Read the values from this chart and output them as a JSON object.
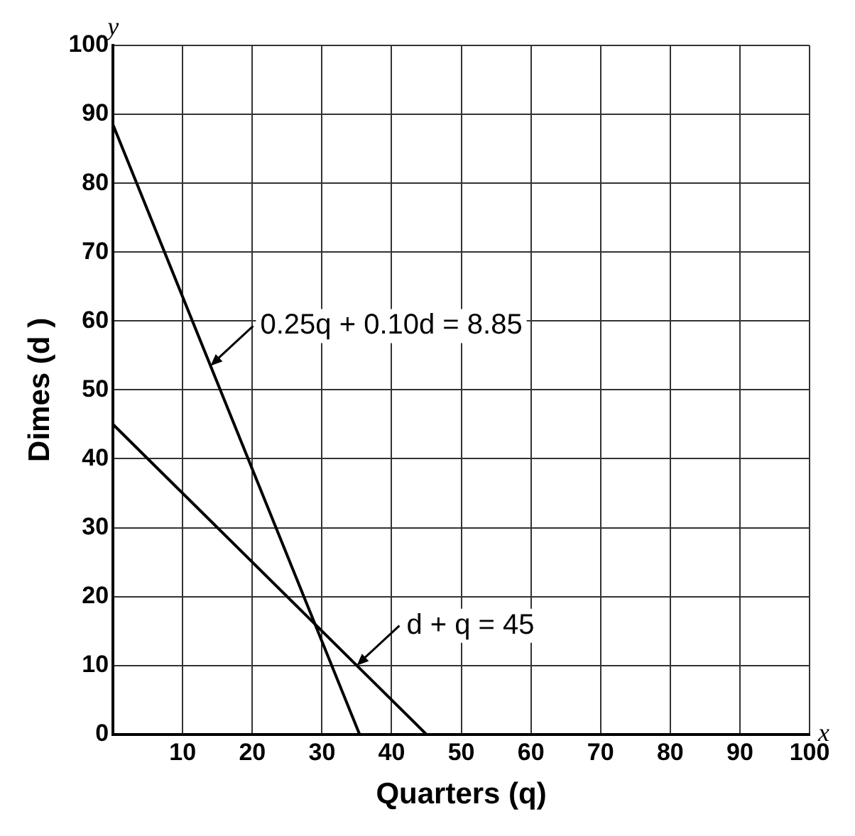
{
  "chart_data": {
    "type": "line",
    "xlabel": "Quarters (q)",
    "ylabel": "Dimes (d )",
    "series": [
      {
        "color": "#000000",
        "x": [
          0,
          35.4
        ],
        "values": [
          88.5,
          0
        ]
      },
      {
        "color": "#000000",
        "x": [
          0,
          45
        ],
        "values": [
          45,
          0
        ]
      }
    ],
    "xlim": [
      0,
      100
    ],
    "ylim": [
      0,
      100
    ],
    "xticks": [
      10,
      20,
      30,
      40,
      50,
      60,
      70,
      80,
      90,
      100
    ],
    "yticks": [
      0,
      10,
      20,
      30,
      40,
      50,
      60,
      70,
      80,
      90,
      100
    ],
    "grid": true,
    "legend": false,
    "marker": "none",
    "line_style": "solid",
    "annotations": [
      {
        "text": "0.25q + 0.10d = 8.85",
        "x": 14,
        "y": 53.5
      },
      {
        "text": "d + q = 45",
        "x": 35,
        "y": 10
      },
      "x",
      "y"
    ]
  }
}
